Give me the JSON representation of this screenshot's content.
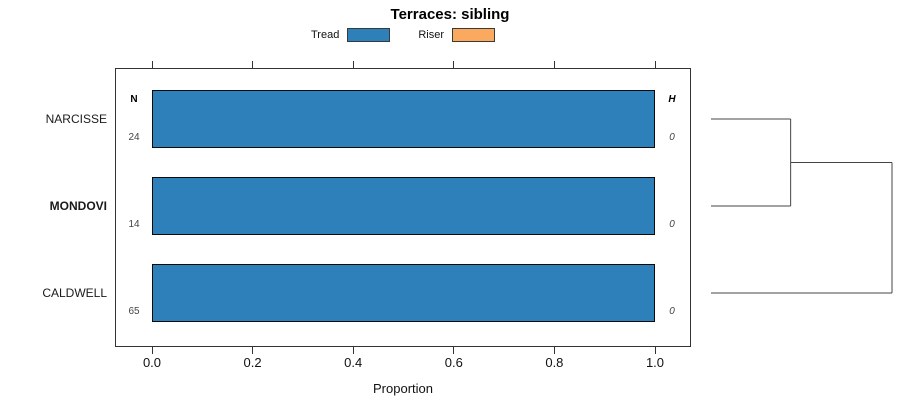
{
  "title": "Terraces: sibling",
  "legend": {
    "items": [
      {
        "label": "Tread",
        "color": "#2e80ba"
      },
      {
        "label": "Riser",
        "color": "#fba95f"
      }
    ]
  },
  "columns": {
    "n_header": "N",
    "h_header": "H"
  },
  "colors": {
    "tread": "#2e80ba",
    "riser": "#fba95f",
    "bar_border": "#0a0a0a",
    "dendrogram_line": "#444444"
  },
  "chart_data": {
    "type": "bar",
    "orientation": "horizontal",
    "stacked": true,
    "title": "Terraces: sibling",
    "xlabel": "Proportion",
    "xlim": [
      0,
      1
    ],
    "grid": false,
    "legend_position": "top-center",
    "categories": [
      "NARCISSE",
      "MONDOVI",
      "CALDWELL"
    ],
    "emphasized_category": "MONDOVI",
    "series": [
      {
        "name": "Tread",
        "color": "#2e80ba",
        "values": [
          1.0,
          1.0,
          1.0
        ]
      },
      {
        "name": "Riser",
        "color": "#fba95f",
        "values": [
          0.0,
          0.0,
          0.0
        ]
      }
    ],
    "n_values": [
      24,
      14,
      65
    ],
    "h_values": [
      0,
      0,
      0
    ],
    "x_ticks": {
      "values": [
        0,
        0.2,
        0.4,
        0.6,
        0.8,
        1.0
      ],
      "labels": [
        "0.0",
        "0.2",
        "0.4",
        "0.6",
        "0.8",
        "1.0"
      ]
    },
    "dendrogram": {
      "leaves": [
        "NARCISSE",
        "MONDOVI",
        "CALDWELL"
      ],
      "merges": [
        {
          "children": [
            0,
            1
          ],
          "height": 0.44
        },
        {
          "children": [
            3,
            2
          ],
          "height": 1.0
        }
      ]
    }
  }
}
